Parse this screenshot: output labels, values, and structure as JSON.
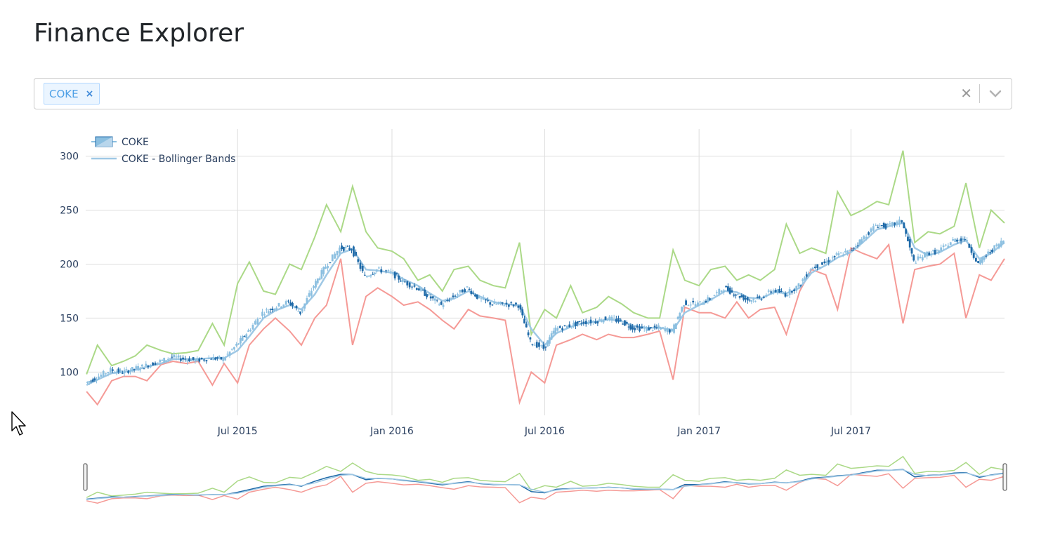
{
  "page": {
    "title": "Finance Explorer"
  },
  "ticker_select": {
    "selected": [
      {
        "label": "COKE",
        "remove_symbol": "×"
      }
    ],
    "clear_symbol": "✕",
    "icons": {
      "clear": "close-icon",
      "dropdown": "chevron-down-icon"
    }
  },
  "colors": {
    "upper_band": "#abd987",
    "lower_band": "#f59a96",
    "middle_band": "#9fc8e5",
    "candle_up": "#8bbfe0",
    "candle_down": "#1f6aa8",
    "grid": "#dddddd"
  },
  "chart_data": {
    "type": "candlestick",
    "title": "",
    "xlabel": "",
    "ylabel": "",
    "x_range": [
      "2015-01-01",
      "2017-12-31"
    ],
    "x_ticks": [
      "Jul 2015",
      "Jan 2016",
      "Jul 2016",
      "Jan 2017",
      "Jul 2017"
    ],
    "x_tick_dates": [
      "2015-07-01",
      "2016-01-01",
      "2016-07-01",
      "2017-01-01",
      "2017-07-01"
    ],
    "ylim": [
      60,
      325
    ],
    "y_ticks": [
      100,
      150,
      200,
      250,
      300
    ],
    "grid": true,
    "legend": {
      "position": "top-left",
      "entries": [
        "COKE",
        "COKE - Bollinger Bands"
      ]
    },
    "rangeslider": true,
    "series": [
      {
        "name": "COKE",
        "kind": "ohlc-close",
        "x": [
          "2015-01-02",
          "2015-01-15",
          "2015-02-01",
          "2015-02-15",
          "2015-03-01",
          "2015-03-15",
          "2015-04-01",
          "2015-04-15",
          "2015-05-01",
          "2015-05-15",
          "2015-06-01",
          "2015-06-15",
          "2015-07-01",
          "2015-07-15",
          "2015-08-01",
          "2015-08-15",
          "2015-09-01",
          "2015-09-15",
          "2015-10-01",
          "2015-10-15",
          "2015-11-01",
          "2015-11-15",
          "2015-12-01",
          "2015-12-15",
          "2016-01-01",
          "2016-01-15",
          "2016-02-01",
          "2016-02-15",
          "2016-03-01",
          "2016-03-15",
          "2016-04-01",
          "2016-04-15",
          "2016-05-01",
          "2016-05-15",
          "2016-06-01",
          "2016-06-15",
          "2016-07-01",
          "2016-07-15",
          "2016-08-01",
          "2016-08-15",
          "2016-09-01",
          "2016-09-15",
          "2016-10-01",
          "2016-10-15",
          "2016-11-01",
          "2016-11-15",
          "2016-12-01",
          "2016-12-15",
          "2017-01-01",
          "2017-01-15",
          "2017-02-01",
          "2017-02-15",
          "2017-03-01",
          "2017-03-15",
          "2017-04-01",
          "2017-04-15",
          "2017-05-01",
          "2017-05-15",
          "2017-06-01",
          "2017-06-15",
          "2017-07-01",
          "2017-07-15",
          "2017-08-01",
          "2017-08-15",
          "2017-09-01",
          "2017-09-15",
          "2017-10-01",
          "2017-10-15",
          "2017-11-01",
          "2017-11-15",
          "2017-12-01",
          "2017-12-15",
          "2017-12-31"
        ],
        "y": [
          90,
          95,
          102,
          100,
          103,
          106,
          110,
          114,
          112,
          111,
          113,
          112,
          125,
          138,
          155,
          160,
          165,
          155,
          180,
          198,
          215,
          214,
          188,
          195,
          192,
          184,
          178,
          170,
          162,
          170,
          178,
          168,
          163,
          163,
          162,
          128,
          122,
          140,
          143,
          146,
          147,
          150,
          147,
          141,
          140,
          141,
          138,
          164,
          163,
          168,
          178,
          172,
          167,
          168,
          176,
          172,
          180,
          196,
          201,
          208,
          212,
          223,
          236,
          235,
          240,
          202,
          210,
          212,
          222,
          224,
          200,
          212,
          222
        ]
      },
      {
        "name": "COKE - Bollinger Bands",
        "kind": "middle",
        "x": [
          "2015-01-02",
          "2015-01-15",
          "2015-02-01",
          "2015-02-15",
          "2015-03-01",
          "2015-03-15",
          "2015-04-01",
          "2015-04-15",
          "2015-05-01",
          "2015-05-15",
          "2015-06-01",
          "2015-06-15",
          "2015-07-01",
          "2015-07-15",
          "2015-08-01",
          "2015-08-15",
          "2015-09-01",
          "2015-09-15",
          "2015-10-01",
          "2015-10-15",
          "2015-11-01",
          "2015-11-15",
          "2015-12-01",
          "2015-12-15",
          "2016-01-01",
          "2016-01-15",
          "2016-02-01",
          "2016-02-15",
          "2016-03-01",
          "2016-03-15",
          "2016-04-01",
          "2016-04-15",
          "2016-05-01",
          "2016-05-15",
          "2016-06-01",
          "2016-06-15",
          "2016-07-01",
          "2016-07-15",
          "2016-08-01",
          "2016-08-15",
          "2016-09-01",
          "2016-09-15",
          "2016-10-01",
          "2016-10-15",
          "2016-11-01",
          "2016-11-15",
          "2016-12-01",
          "2016-12-15",
          "2017-01-01",
          "2017-01-15",
          "2017-02-01",
          "2017-02-15",
          "2017-03-01",
          "2017-03-15",
          "2017-04-01",
          "2017-04-15",
          "2017-05-01",
          "2017-05-15",
          "2017-06-01",
          "2017-06-15",
          "2017-07-01",
          "2017-07-15",
          "2017-08-01",
          "2017-08-15",
          "2017-09-01",
          "2017-09-15",
          "2017-10-01",
          "2017-10-15",
          "2017-11-01",
          "2017-11-15",
          "2017-12-01",
          "2017-12-15",
          "2017-12-31"
        ],
        "y": [
          88,
          93,
          99,
          100,
          102,
          105,
          108,
          112,
          112,
          112,
          113,
          113,
          120,
          133,
          150,
          157,
          162,
          158,
          172,
          190,
          210,
          214,
          195,
          194,
          192,
          186,
          180,
          173,
          166,
          168,
          175,
          170,
          165,
          163,
          162,
          140,
          125,
          136,
          142,
          145,
          147,
          149,
          147,
          143,
          141,
          141,
          139,
          155,
          162,
          167,
          175,
          174,
          169,
          168,
          174,
          173,
          178,
          192,
          199,
          206,
          211,
          220,
          232,
          235,
          238,
          215,
          208,
          211,
          218,
          222,
          205,
          210,
          220
        ]
      },
      {
        "name": "Upper band",
        "kind": "upper",
        "x": [
          "2015-01-02",
          "2015-01-15",
          "2015-02-01",
          "2015-02-15",
          "2015-03-01",
          "2015-03-15",
          "2015-04-01",
          "2015-04-15",
          "2015-05-01",
          "2015-05-15",
          "2015-06-01",
          "2015-06-15",
          "2015-07-01",
          "2015-07-15",
          "2015-08-01",
          "2015-08-15",
          "2015-09-01",
          "2015-09-15",
          "2015-10-01",
          "2015-10-15",
          "2015-11-01",
          "2015-11-15",
          "2015-12-01",
          "2015-12-15",
          "2016-01-01",
          "2016-01-15",
          "2016-02-01",
          "2016-02-15",
          "2016-03-01",
          "2016-03-15",
          "2016-04-01",
          "2016-04-15",
          "2016-05-01",
          "2016-05-15",
          "2016-06-01",
          "2016-06-15",
          "2016-07-01",
          "2016-07-15",
          "2016-08-01",
          "2016-08-15",
          "2016-09-01",
          "2016-09-15",
          "2016-10-01",
          "2016-10-15",
          "2016-11-01",
          "2016-11-15",
          "2016-12-01",
          "2016-12-15",
          "2017-01-01",
          "2017-01-15",
          "2017-02-01",
          "2017-02-15",
          "2017-03-01",
          "2017-03-15",
          "2017-04-01",
          "2017-04-15",
          "2017-05-01",
          "2017-05-15",
          "2017-06-01",
          "2017-06-15",
          "2017-07-01",
          "2017-07-15",
          "2017-08-01",
          "2017-08-15",
          "2017-09-01",
          "2017-09-15",
          "2017-10-01",
          "2017-10-15",
          "2017-11-01",
          "2017-11-15",
          "2017-12-01",
          "2017-12-15",
          "2017-12-31"
        ],
        "y": [
          98,
          125,
          106,
          110,
          115,
          125,
          120,
          117,
          118,
          120,
          145,
          125,
          182,
          202,
          175,
          172,
          200,
          195,
          225,
          255,
          230,
          272,
          230,
          215,
          212,
          205,
          185,
          190,
          175,
          195,
          198,
          185,
          180,
          178,
          220,
          135,
          158,
          150,
          180,
          155,
          160,
          170,
          163,
          155,
          150,
          150,
          213,
          185,
          180,
          195,
          198,
          185,
          190,
          185,
          195,
          237,
          210,
          215,
          210,
          267,
          245,
          250,
          258,
          255,
          305,
          220,
          230,
          228,
          235,
          275,
          215,
          250,
          238
        ]
      },
      {
        "name": "Lower band",
        "kind": "lower",
        "x": [
          "2015-01-02",
          "2015-01-15",
          "2015-02-01",
          "2015-02-15",
          "2015-03-01",
          "2015-03-15",
          "2015-04-01",
          "2015-04-15",
          "2015-05-01",
          "2015-05-15",
          "2015-06-01",
          "2015-06-15",
          "2015-07-01",
          "2015-07-15",
          "2015-08-01",
          "2015-08-15",
          "2015-09-01",
          "2015-09-15",
          "2015-10-01",
          "2015-10-15",
          "2015-11-01",
          "2015-11-15",
          "2015-12-01",
          "2015-12-15",
          "2016-01-01",
          "2016-01-15",
          "2016-02-01",
          "2016-02-15",
          "2016-03-01",
          "2016-03-15",
          "2016-04-01",
          "2016-04-15",
          "2016-05-01",
          "2016-05-15",
          "2016-06-01",
          "2016-06-15",
          "2016-07-01",
          "2016-07-15",
          "2016-08-01",
          "2016-08-15",
          "2016-09-01",
          "2016-09-15",
          "2016-10-01",
          "2016-10-15",
          "2016-11-01",
          "2016-11-15",
          "2016-12-01",
          "2016-12-15",
          "2017-01-01",
          "2017-01-15",
          "2017-02-01",
          "2017-02-15",
          "2017-03-01",
          "2017-03-15",
          "2017-04-01",
          "2017-04-15",
          "2017-05-01",
          "2017-05-15",
          "2017-06-01",
          "2017-06-15",
          "2017-07-01",
          "2017-07-15",
          "2017-08-01",
          "2017-08-15",
          "2017-09-01",
          "2017-09-15",
          "2017-10-01",
          "2017-10-15",
          "2017-11-01",
          "2017-11-15",
          "2017-12-01",
          "2017-12-15",
          "2017-12-31"
        ],
        "y": [
          82,
          70,
          92,
          96,
          96,
          92,
          107,
          110,
          108,
          110,
          88,
          108,
          90,
          125,
          140,
          150,
          138,
          125,
          150,
          162,
          205,
          125,
          170,
          178,
          170,
          162,
          165,
          158,
          148,
          140,
          158,
          152,
          150,
          148,
          72,
          100,
          90,
          125,
          130,
          135,
          130,
          135,
          132,
          132,
          135,
          138,
          93,
          160,
          155,
          155,
          150,
          165,
          150,
          158,
          160,
          135,
          175,
          195,
          190,
          158,
          215,
          210,
          205,
          218,
          145,
          195,
          198,
          200,
          210,
          150,
          190,
          185,
          205
        ]
      }
    ]
  }
}
